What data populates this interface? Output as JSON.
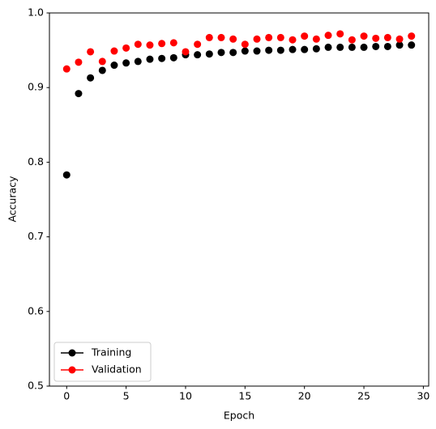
{
  "chart_data": {
    "type": "scatter",
    "x_label": "Epoch",
    "y_label": "Accuracy",
    "x": [
      0,
      1,
      2,
      3,
      4,
      5,
      6,
      7,
      8,
      9,
      10,
      11,
      12,
      13,
      14,
      15,
      16,
      17,
      18,
      19,
      20,
      21,
      22,
      23,
      24,
      25,
      26,
      27,
      28,
      29
    ],
    "series": [
      {
        "name": "Training",
        "color": "#000000",
        "values": [
          0.783,
          0.892,
          0.913,
          0.923,
          0.93,
          0.933,
          0.935,
          0.938,
          0.939,
          0.94,
          0.944,
          0.944,
          0.945,
          0.947,
          0.947,
          0.949,
          0.949,
          0.95,
          0.95,
          0.951,
          0.951,
          0.952,
          0.954,
          0.954,
          0.954,
          0.954,
          0.955,
          0.955,
          0.957,
          0.957
        ]
      },
      {
        "name": "Validation",
        "color": "#ff0000",
        "values": [
          0.925,
          0.934,
          0.948,
          0.935,
          0.949,
          0.953,
          0.958,
          0.957,
          0.959,
          0.96,
          0.948,
          0.958,
          0.967,
          0.967,
          0.965,
          0.958,
          0.965,
          0.967,
          0.967,
          0.964,
          0.969,
          0.965,
          0.97,
          0.972,
          0.964,
          0.969,
          0.966,
          0.967,
          0.965,
          0.969
        ]
      }
    ],
    "xlim": [
      -1.45,
      30.45
    ],
    "xticks": [
      0,
      5,
      10,
      15,
      20,
      25,
      30
    ],
    "ylim": [
      0.5,
      1
    ],
    "yticks": [
      0.5,
      0.6,
      0.7,
      0.8,
      0.9,
      {
        "value": 1,
        "label": "1.0"
      }
    ],
    "legend_loc": "lower left",
    "grid": false
  }
}
